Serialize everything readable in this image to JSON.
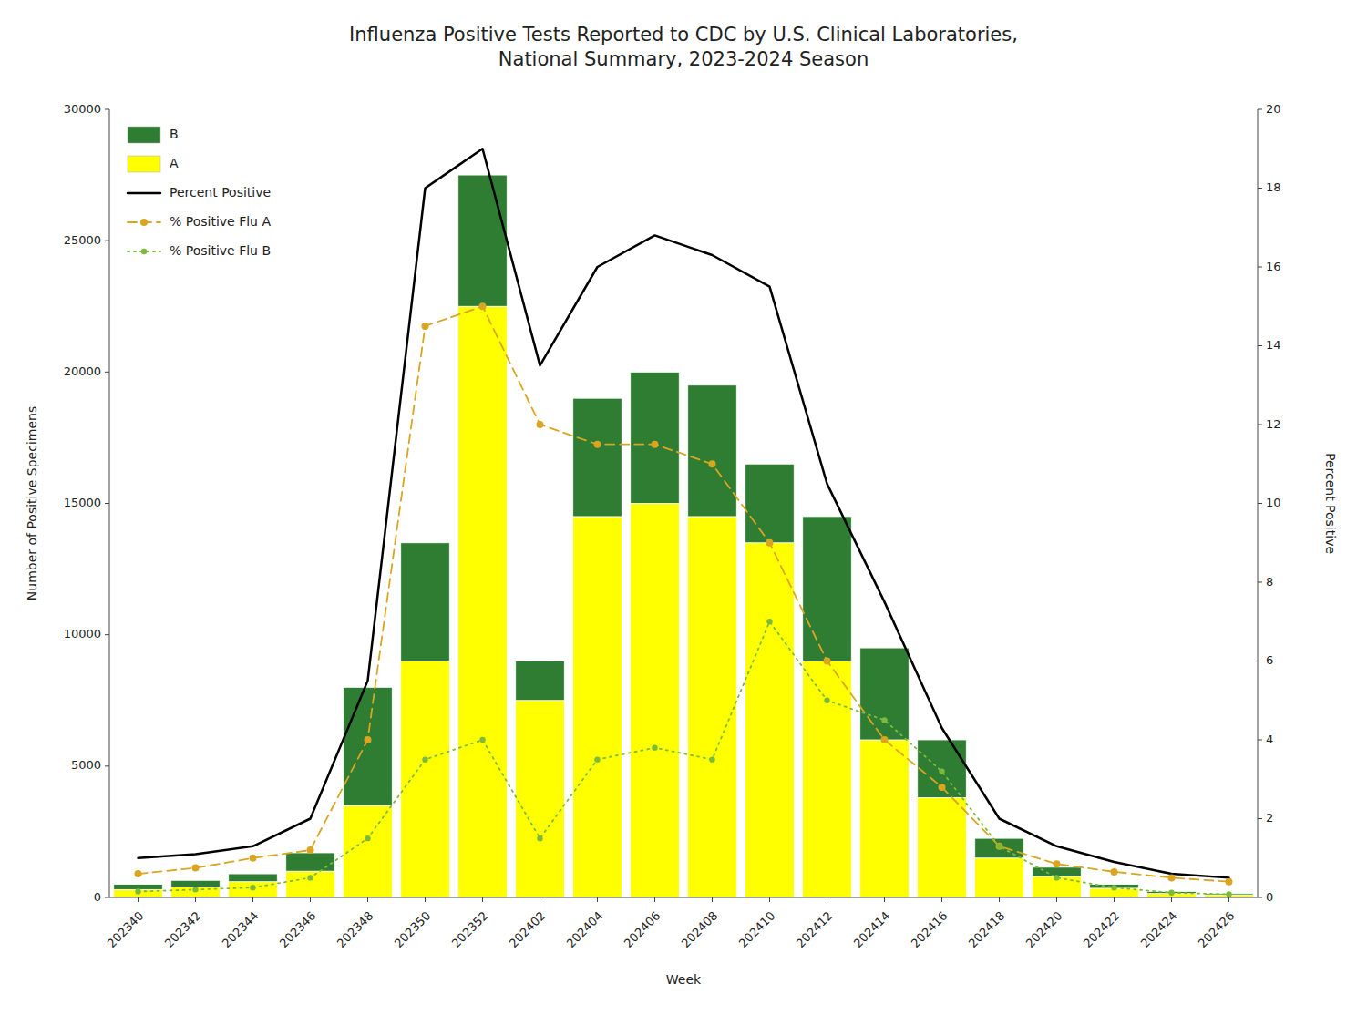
{
  "chart_data": {
    "type": "bar",
    "title": "Influenza Positive Tests Reported to CDC by U.S. Clinical Laboratories,\nNational Summary, 2023-2024 Season",
    "x_label": "Week",
    "y_label": "Number of Positive Specimens",
    "y2_label": "Percent Positive",
    "categories": [
      "202340",
      "202342",
      "202344",
      "202346",
      "202348",
      "202350",
      "202352",
      "202402",
      "202404",
      "202406",
      "202408",
      "202410",
      "202412",
      "202414",
      "202416",
      "202418",
      "202420",
      "202422",
      "202424",
      "202426"
    ],
    "series": [
      {
        "name": "A",
        "color": "#FFFF00",
        "values": [
          300,
          400,
          600,
          1000,
          3500,
          9000,
          22500,
          7500,
          14500,
          15000,
          14500,
          13500,
          9000,
          6000,
          3800,
          1500,
          800,
          350,
          150,
          100
        ]
      },
      {
        "name": "B",
        "color": "#2E7D32",
        "values": [
          200,
          250,
          300,
          700,
          4500,
          4500,
          5000,
          1500,
          4500,
          5000,
          5000,
          3000,
          5500,
          3500,
          2200,
          750,
          350,
          150,
          80,
          50
        ]
      },
      {
        "name": "Percent Positive",
        "type": "line",
        "axis": "y2",
        "color": "#000000",
        "line_style": "solid",
        "values": [
          1.0,
          1.1,
          1.3,
          2.0,
          5.5,
          18.0,
          19.0,
          13.5,
          16.0,
          16.8,
          16.3,
          15.5,
          10.5,
          7.5,
          4.3,
          2.0,
          1.3,
          0.9,
          0.6,
          0.5
        ]
      },
      {
        "name": "% Positive Flu A",
        "type": "line",
        "axis": "y2",
        "color": "#DAA520",
        "line_style": "dashed",
        "marker": "circle",
        "values": [
          0.6,
          0.75,
          1.0,
          1.2,
          4.0,
          14.5,
          15.0,
          12.0,
          11.5,
          11.5,
          11.0,
          9.0,
          6.0,
          4.0,
          2.8,
          1.3,
          0.85,
          0.65,
          0.5,
          0.4
        ]
      },
      {
        "name": "% Positive Flu B",
        "type": "line",
        "axis": "y2",
        "color": "#7CBA3C",
        "line_style": "dotted",
        "marker": "circle",
        "values": [
          0.15,
          0.2,
          0.25,
          0.5,
          1.5,
          3.5,
          4.0,
          1.5,
          3.5,
          3.8,
          3.5,
          7.0,
          5.0,
          4.5,
          3.2,
          1.3,
          0.5,
          0.25,
          0.12,
          0.08
        ]
      }
    ],
    "stacked": true,
    "ylim": [
      0,
      30000
    ],
    "yticks": [
      0,
      5000,
      10000,
      15000,
      20000,
      25000,
      30000
    ],
    "y2lim": [
      0,
      20
    ],
    "y2ticks": [
      0,
      2,
      4,
      6,
      8,
      10,
      12,
      14,
      16,
      18,
      20
    ],
    "grid": false,
    "legend": "upper left"
  }
}
